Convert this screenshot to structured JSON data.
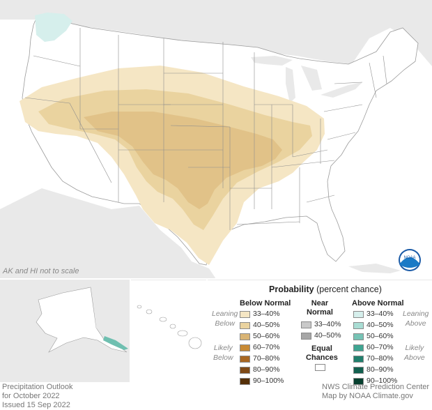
{
  "map": {
    "inset_note": "AK and HI not to scale",
    "logo_text": "NOAA"
  },
  "legend": {
    "title": "Probability",
    "title_suffix": "(percent chance)",
    "below": {
      "heading": "Below Normal",
      "leaning": [
        "Leaning",
        "Below"
      ],
      "likely": [
        "Likely",
        "Below"
      ],
      "items": [
        {
          "label": "33–40%",
          "color": "#f5e6c4"
        },
        {
          "label": "40–50%",
          "color": "#ead39f"
        },
        {
          "label": "50–60%",
          "color": "#d9b474"
        },
        {
          "label": "60–70%",
          "color": "#c88a35"
        },
        {
          "label": "70–80%",
          "color": "#a86722"
        },
        {
          "label": "80–90%",
          "color": "#7f4a16"
        },
        {
          "label": "90–100%",
          "color": "#553008"
        }
      ]
    },
    "near": {
      "heading": [
        "Near",
        "Normal"
      ],
      "items": [
        {
          "label": "33–40%",
          "color": "#c9c9c9"
        },
        {
          "label": "40–50%",
          "color": "#a6a6a6"
        }
      ]
    },
    "equal": {
      "label": [
        "Equal",
        "Chances"
      ],
      "color": "#ffffff"
    },
    "above": {
      "heading": "Above Normal",
      "leaning": [
        "Leaning",
        "Above"
      ],
      "likely": [
        "Likely",
        "Above"
      ],
      "items": [
        {
          "label": "33–40%",
          "color": "#d6efec"
        },
        {
          "label": "40–50%",
          "color": "#a9ddd4"
        },
        {
          "label": "50–60%",
          "color": "#76c3b5"
        },
        {
          "label": "60–70%",
          "color": "#3fa592"
        },
        {
          "label": "70–80%",
          "color": "#217f6d"
        },
        {
          "label": "80–90%",
          "color": "#12604f"
        },
        {
          "label": "90–100%",
          "color": "#07402f"
        }
      ]
    }
  },
  "footer": {
    "left": [
      "Precipitation Outlook",
      "for October 2022",
      "Issued 15 Sep 2022"
    ],
    "right": [
      "NWS Climate Prediction Center",
      "Map by NOAA Climate.gov"
    ]
  }
}
